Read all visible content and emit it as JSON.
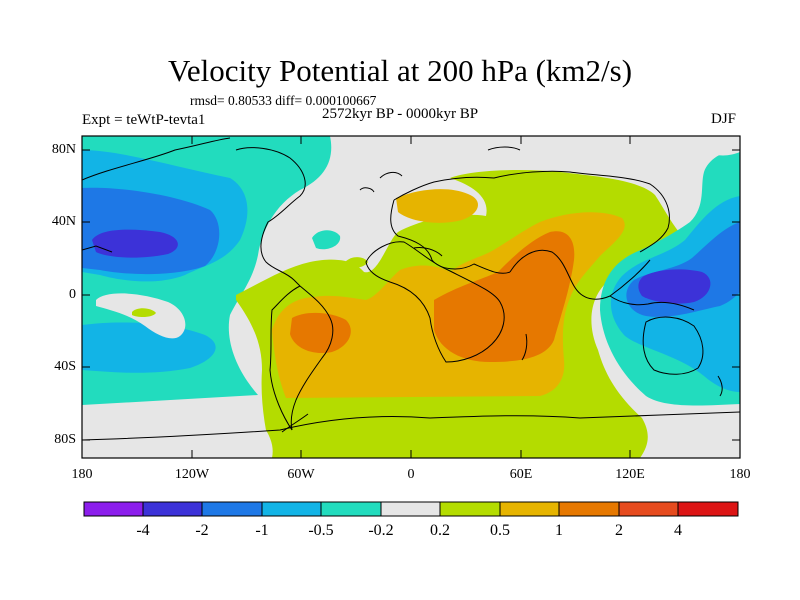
{
  "title": "Velocity Potential at 200 hPa (km2/s)",
  "stats": "rmsd= 0.80533 diff= 0.000100667",
  "period": "2572kyr BP - 0000kyr BP",
  "experiment": "Expt = teWtP-tevta1",
  "season": "DJF",
  "lat_labels": [
    "80N",
    "40N",
    "0",
    "40S",
    "80S"
  ],
  "lon_labels": [
    "180",
    "120W",
    "60W",
    "0",
    "60E",
    "120E",
    "180"
  ],
  "colorbar": {
    "labels": [
      "-4",
      "-2",
      "-1",
      "-0.5",
      "-0.2",
      "0.2",
      "0.5",
      "1",
      "2",
      "4"
    ],
    "colors": [
      "#8c1eec",
      "#3c32d8",
      "#1e78e6",
      "#12b4e6",
      "#22dcbe",
      "#e6e6e6",
      "#b4dc00",
      "#e6b400",
      "#e67800",
      "#e64b1e",
      "#dc1414"
    ]
  },
  "map_colors": {
    "neutral": "#e6e6e6",
    "c_n05": "#22dcbe",
    "c_n1": "#12b4e6",
    "c_n2": "#1e78e6",
    "c_n4": "#3c32d8",
    "c_p02": "#b4dc00",
    "c_p05": "#e6b400",
    "c_p1": "#e67800"
  }
}
